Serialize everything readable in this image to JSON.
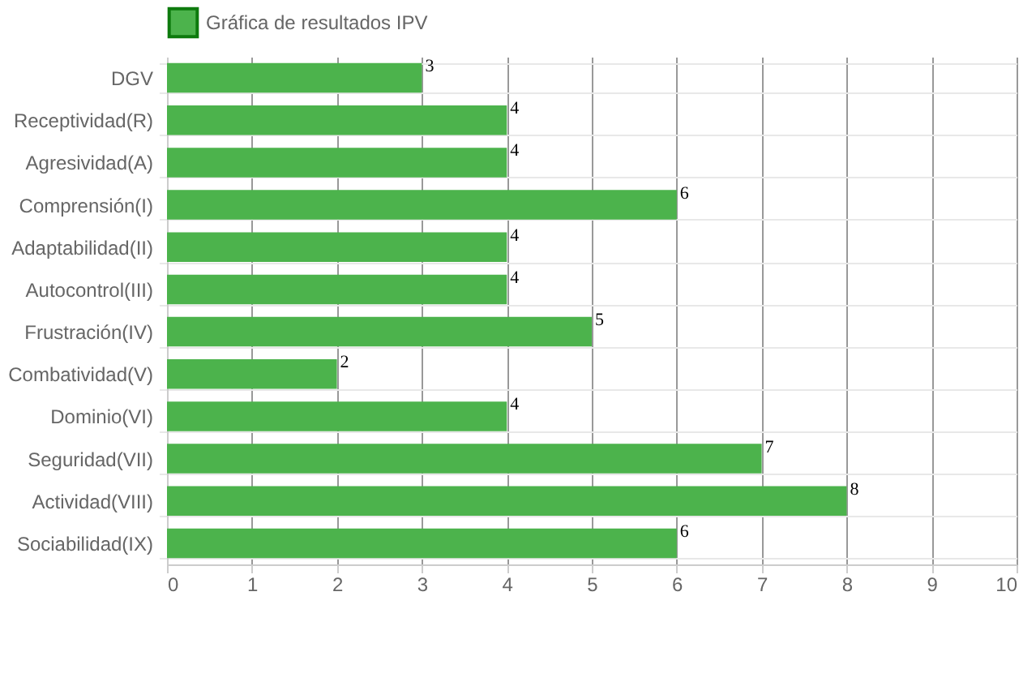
{
  "chart_data": {
    "type": "bar",
    "orientation": "horizontal",
    "categories": [
      "DGV",
      "Receptividad(R)",
      "Agresividad(A)",
      "Comprensión(I)",
      "Adaptabilidad(II)",
      "Autocontrol(III)",
      "Frustración(IV)",
      "Combatividad(V)",
      "Dominio(VI)",
      "Seguridad(VII)",
      "Actividad(VIII)",
      "Sociabilidad(IX)"
    ],
    "series": [
      {
        "name": "Gráfica de resultados IPV",
        "color": "#4cb34c",
        "values": [
          3,
          4,
          4,
          6,
          4,
          4,
          5,
          2,
          4,
          7,
          8,
          6
        ]
      }
    ],
    "xlim": [
      0,
      10
    ],
    "xticks": [
      0,
      1,
      2,
      3,
      4,
      5,
      6,
      7,
      8,
      9,
      10
    ],
    "grid": true,
    "legend": "top",
    "data_labels": true
  }
}
